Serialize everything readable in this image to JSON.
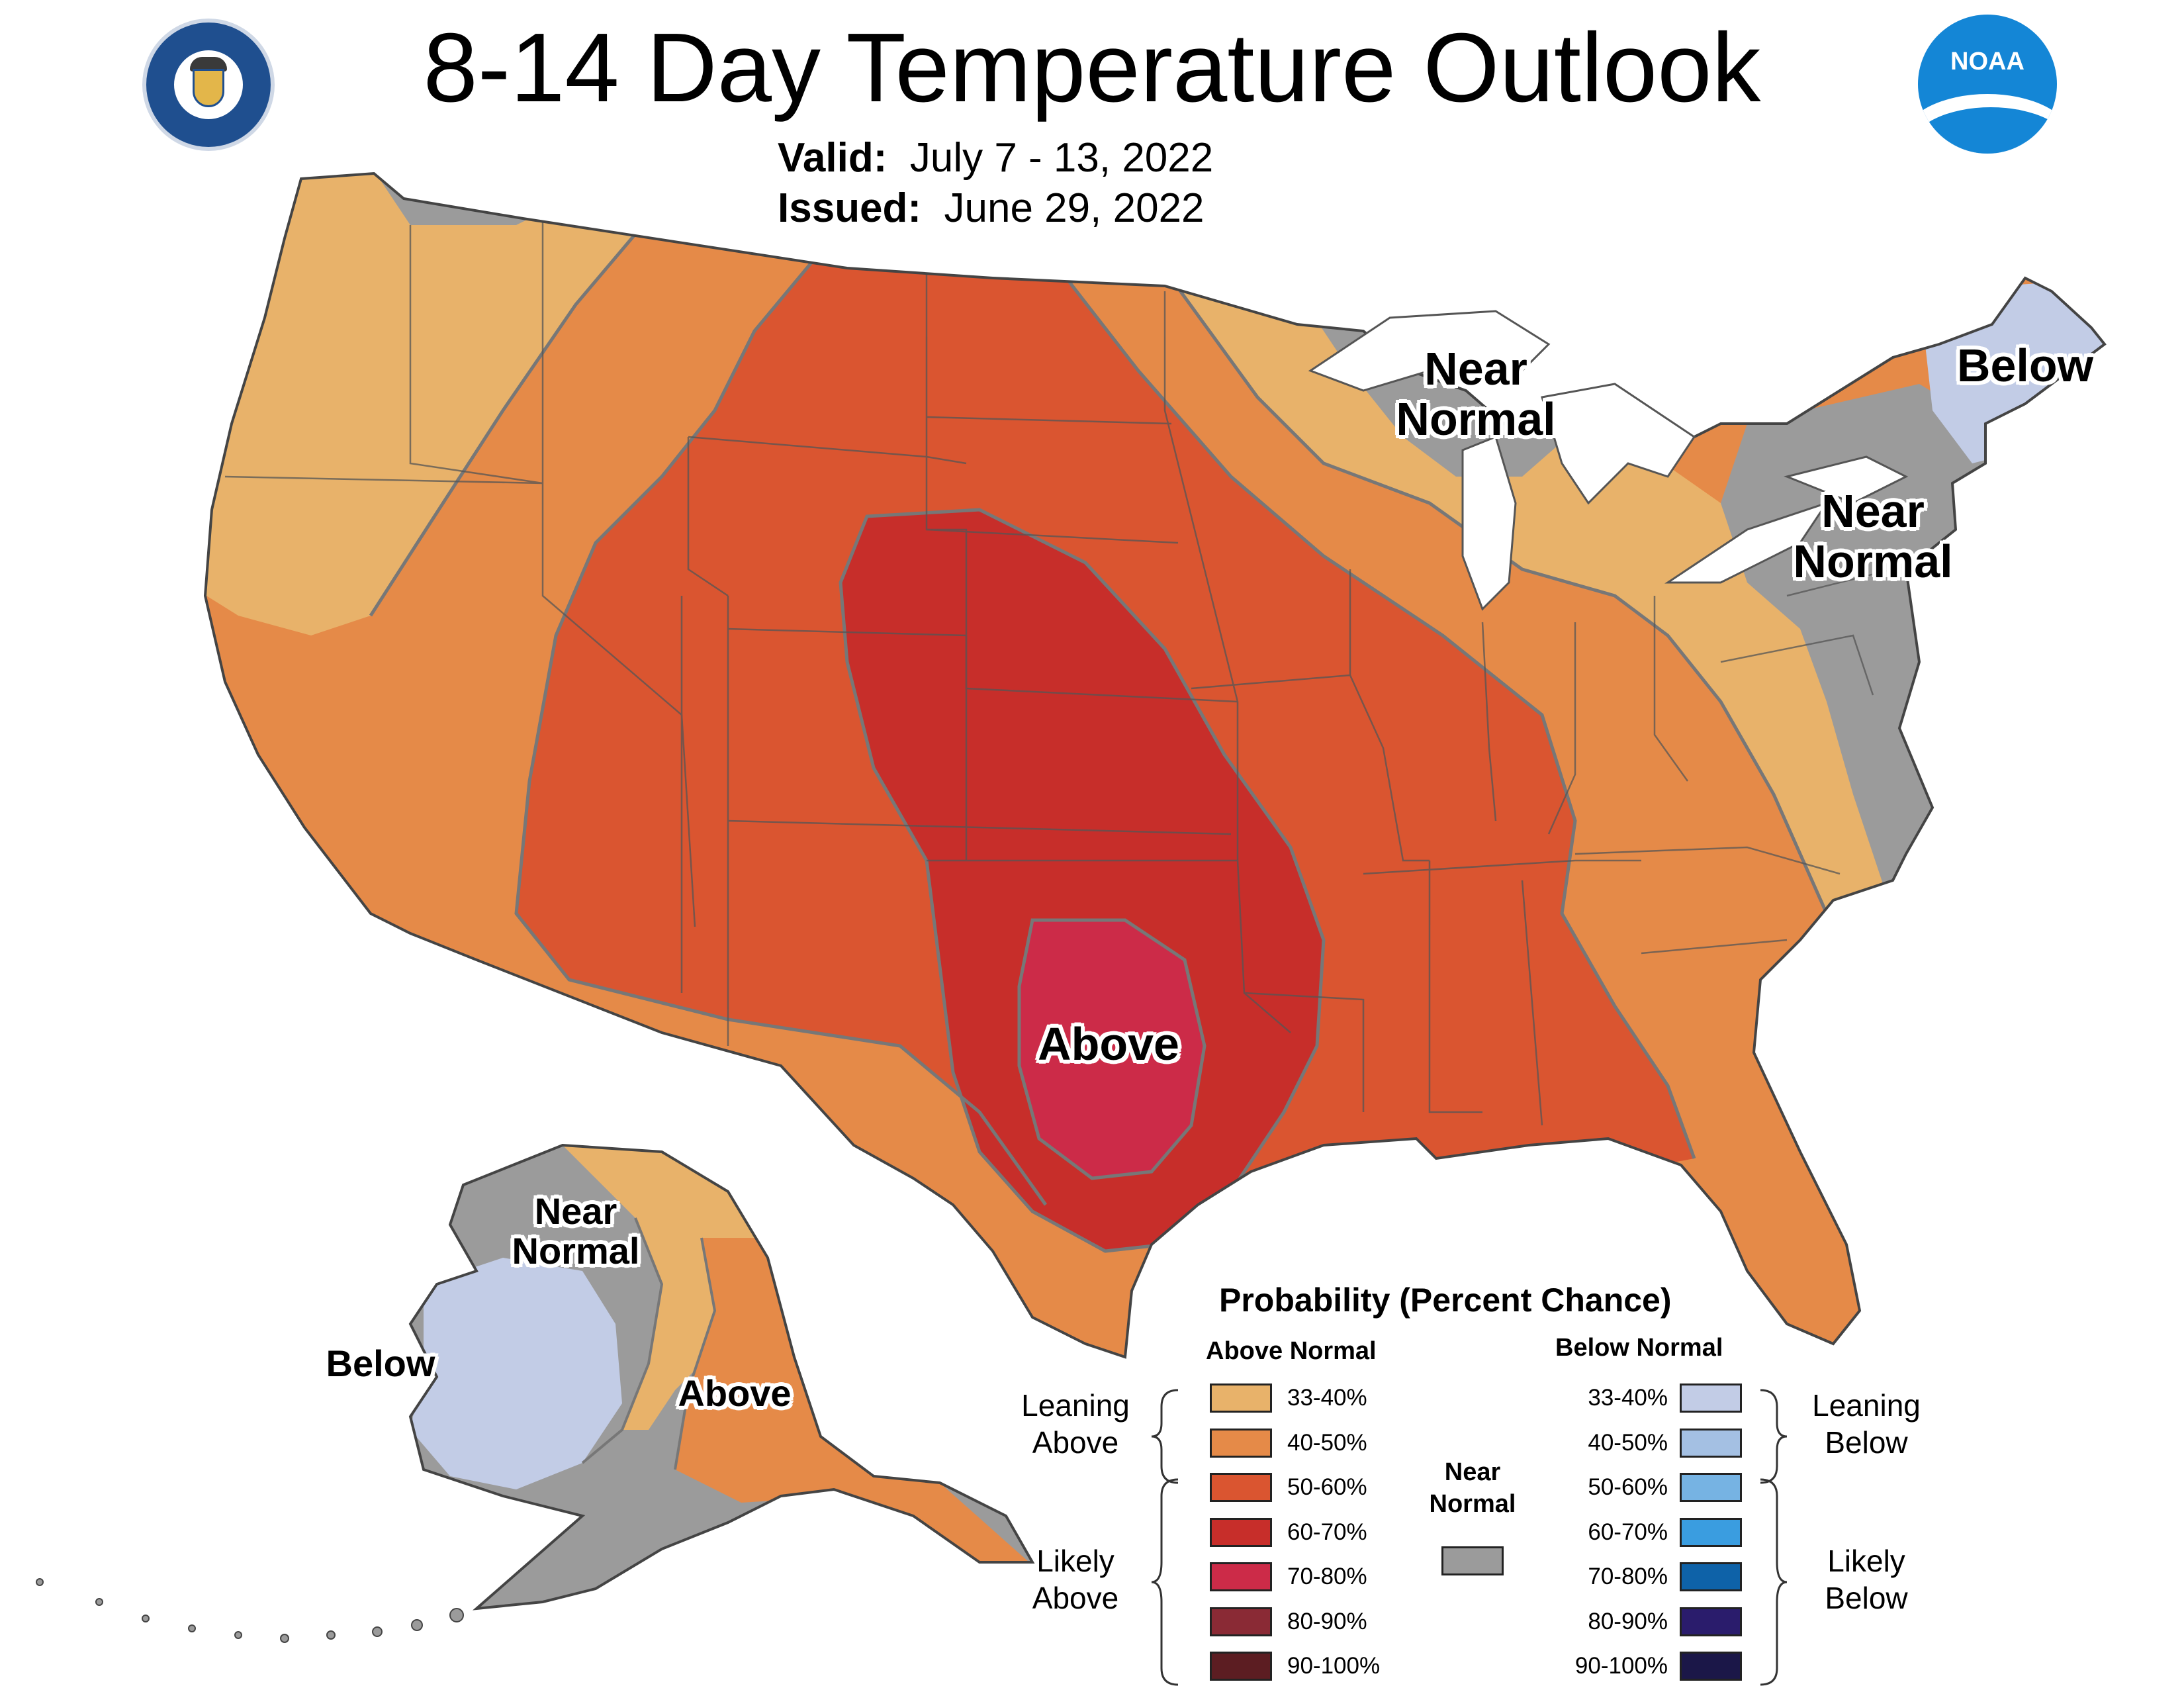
{
  "header": {
    "title": "8-14 Day Temperature Outlook",
    "valid_label": "Valid:",
    "valid_dates": "July 7 - 13, 2022",
    "issued_label": "Issued:",
    "issued_date": "June 29, 2022",
    "left_logo": "department-of-commerce-seal",
    "right_logo": "noaa-logo",
    "noaa_text": "NOAA"
  },
  "map_labels": {
    "above": "Above",
    "near_normal_great_lakes": [
      "Near",
      "Normal"
    ],
    "below_new_england": "Below",
    "near_normal_northeast": [
      "Near",
      "Normal"
    ],
    "alaska_near_normal": [
      "Near",
      "Normal"
    ],
    "alaska_below": "Below",
    "alaska_above": "Above"
  },
  "legend": {
    "title": "Probability (Percent Chance)",
    "above_header": "Above Normal",
    "below_header": "Below Normal",
    "near_normal": [
      "Near",
      "Normal"
    ],
    "leaning_above": [
      "Leaning",
      "Above"
    ],
    "likely_above": [
      "Likely",
      "Above"
    ],
    "leaning_below": [
      "Leaning",
      "Below"
    ],
    "likely_below": [
      "Likely",
      "Below"
    ],
    "above_items": [
      {
        "label": "33-40%",
        "color": "#e8b26a"
      },
      {
        "label": "40-50%",
        "color": "#e58a48"
      },
      {
        "label": "50-60%",
        "color": "#da5530"
      },
      {
        "label": "60-70%",
        "color": "#c72e2a"
      },
      {
        "label": "70-80%",
        "color": "#cc2b48"
      },
      {
        "label": "80-90%",
        "color": "#8a2a35"
      },
      {
        "label": "90-100%",
        "color": "#5c1d22"
      }
    ],
    "below_items": [
      {
        "label": "33-40%",
        "color": "#c2cce6"
      },
      {
        "label": "40-50%",
        "color": "#a4c0e3"
      },
      {
        "label": "50-60%",
        "color": "#76b3e3"
      },
      {
        "label": "60-70%",
        "color": "#3a9de0"
      },
      {
        "label": "70-80%",
        "color": "#0e62a8"
      },
      {
        "label": "80-90%",
        "color": "#2a1c6c"
      },
      {
        "label": "90-100%",
        "color": "#1b1748"
      }
    ],
    "near_normal_color": "#9b9b9b"
  }
}
